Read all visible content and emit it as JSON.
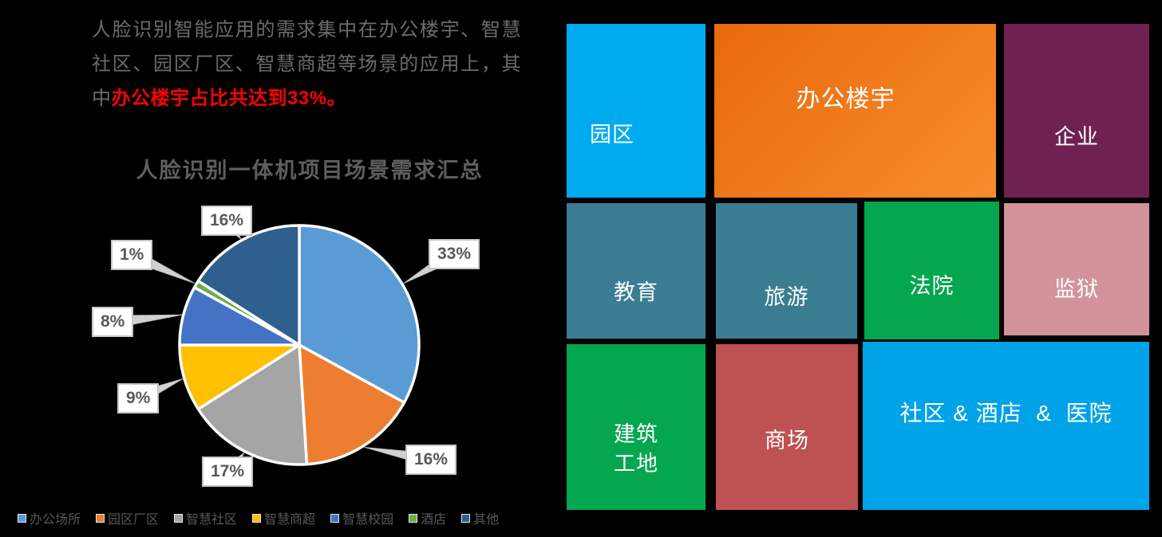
{
  "intro": {
    "text": "人脸识别智能应用的需求集中在办公楼宇、智慧社区、园区厂区、智慧商超等场景的应用上，其中",
    "highlight": "办公楼宇占比共达到33%。"
  },
  "chart_data": {
    "type": "pie",
    "title": "人脸识别一体机项目场景需求汇总",
    "categories": [
      "办公场所",
      "园区厂区",
      "智慧社区",
      "智慧商超",
      "智慧校园",
      "酒店",
      "其他"
    ],
    "values": [
      33,
      16,
      17,
      9,
      8,
      1,
      16
    ],
    "labels": [
      "33%",
      "16%",
      "17%",
      "9%",
      "8%",
      "1%",
      "16%"
    ],
    "unit": "%",
    "colors": [
      "#5B9BD5",
      "#ED7D31",
      "#A5A5A5",
      "#FFC000",
      "#4472C4",
      "#70AD47",
      "#2E5F8F"
    ],
    "start_angle_deg": 0,
    "direction": "clockwise",
    "legend_position": "bottom",
    "slice_border_color": "#FFFFFF",
    "callout_line_color": "#D0D0D0"
  },
  "scene_grid": {
    "tiles": [
      {
        "label": "园区",
        "color": "#00AAEE"
      },
      {
        "label": "办公楼宇",
        "color": "#E8690E",
        "color2": "#F88C2B"
      },
      {
        "label": "企业",
        "color": "#6F2152"
      },
      {
        "label": "教育",
        "color": "#3A7D92"
      },
      {
        "label": "旅游",
        "color": "#3A7D92"
      },
      {
        "label": "法院",
        "color": "#04A64F"
      },
      {
        "label": "监狱",
        "color": "#D2939C"
      },
      {
        "label": "建筑\n工地",
        "color": "#04A64F"
      },
      {
        "label": "商场",
        "color": "#BE5151"
      },
      {
        "label": "社区 & 酒店  &  医院",
        "color": "#00A3E8"
      }
    ]
  }
}
